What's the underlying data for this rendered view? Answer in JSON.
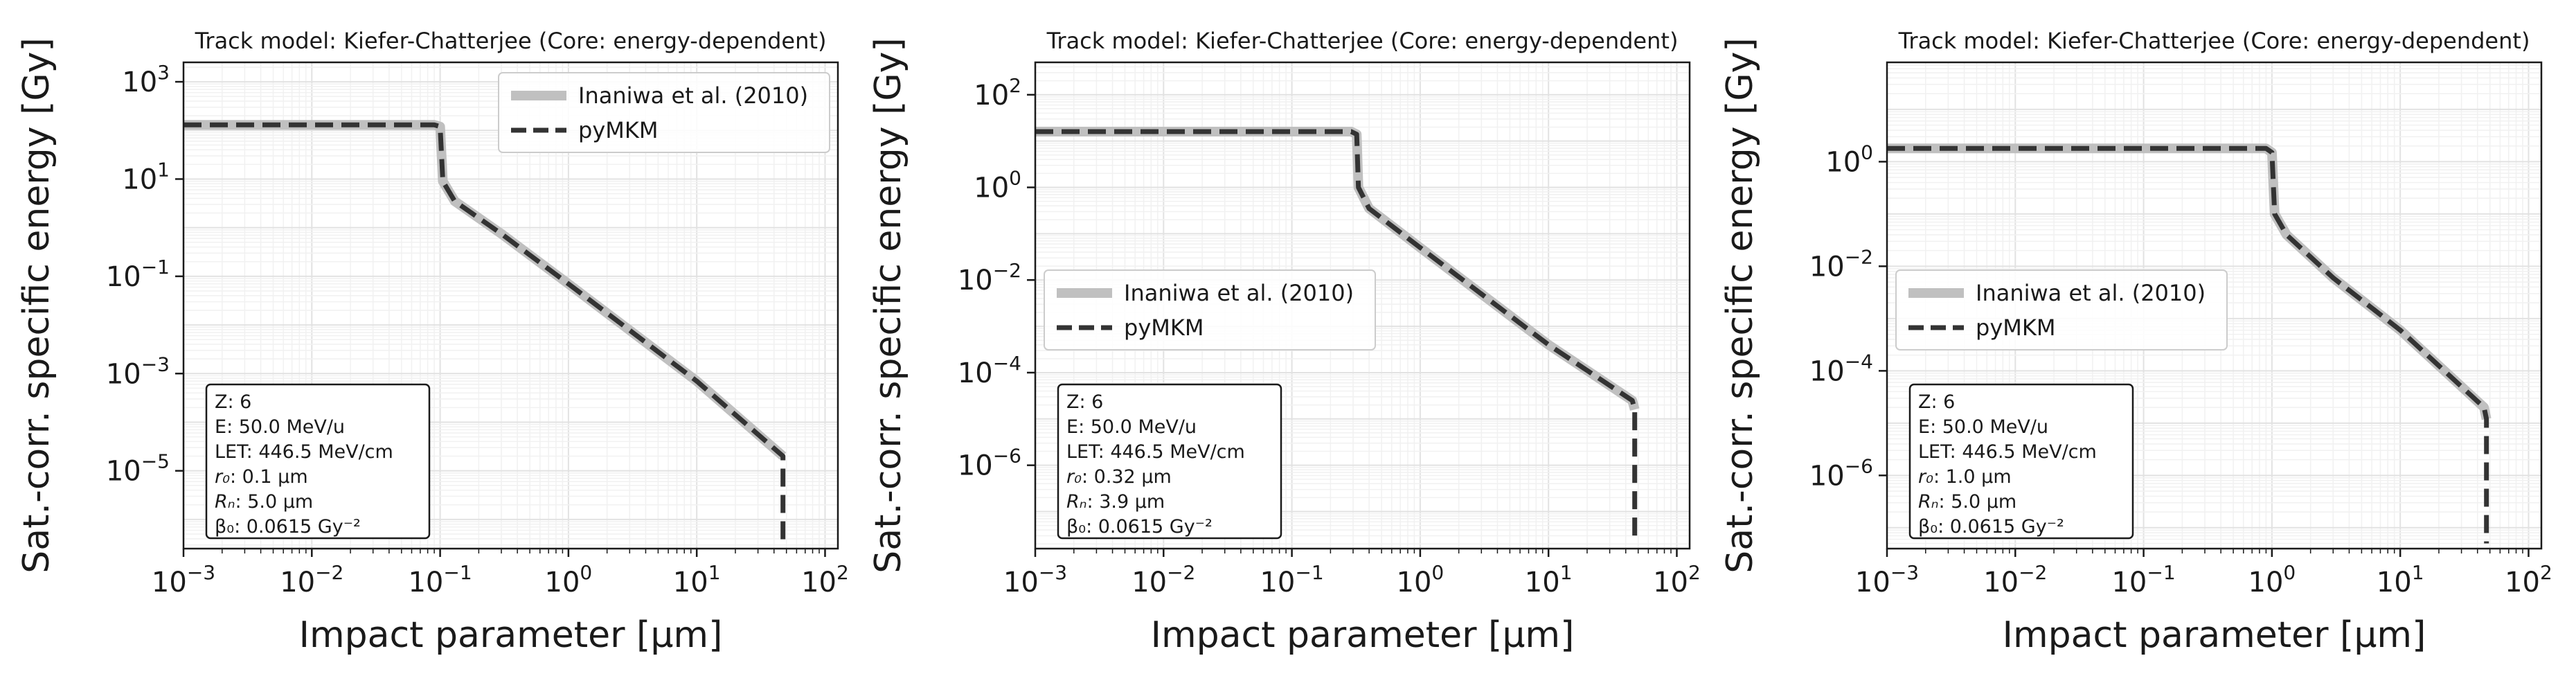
{
  "chart_data": [
    {
      "type": "line",
      "title": "Track model: Kiefer-Chatterjee (Core: energy-dependent)",
      "xlabel": "Impact parameter [μm]",
      "ylabel": "Sat.-corr. specific energy [Gy]",
      "xscale": "log",
      "yscale": "log",
      "xlim_exp": [
        -3,
        2.1
      ],
      "ylim_exp": [
        -6.6,
        3.4
      ],
      "xticks": [
        {
          "base": "10",
          "exp": "−3",
          "v": -3
        },
        {
          "base": "10",
          "exp": "−2",
          "v": -2
        },
        {
          "base": "10",
          "exp": "−1",
          "v": -1
        },
        {
          "base": "10",
          "exp": "0",
          "v": 0
        },
        {
          "base": "10",
          "exp": "1",
          "v": 1
        },
        {
          "base": "10",
          "exp": "2",
          "v": 2
        }
      ],
      "yticks": [
        {
          "base": "10",
          "exp": "3",
          "v": 3
        },
        {
          "base": "10",
          "exp": "1",
          "v": 1
        },
        {
          "base": "10",
          "exp": "−1",
          "v": -1
        },
        {
          "base": "10",
          "exp": "−3",
          "v": -3
        },
        {
          "base": "10",
          "exp": "−5",
          "v": -5
        }
      ],
      "legend": {
        "location": "upper right",
        "entries": [
          "Inaniwa et al. (2010)",
          "pyMKM"
        ]
      },
      "series": [
        {
          "name": "Inaniwa et al. (2010)",
          "color": "#c0c0c0",
          "style": "solid",
          "points": [
            [
              0.001,
              130
            ],
            [
              0.09,
              130
            ],
            [
              0.1,
              120
            ],
            [
              0.105,
              9.0
            ],
            [
              0.13,
              3.5
            ],
            [
              0.3,
              0.75
            ],
            [
              1,
              0.07
            ],
            [
              10,
              0.0007
            ],
            [
              47,
              2e-05
            ]
          ]
        },
        {
          "name": "pyMKM",
          "color": "#333333",
          "style": "dashed",
          "points": [
            [
              0.001,
              130
            ],
            [
              0.09,
              130
            ],
            [
              0.1,
              120
            ],
            [
              0.105,
              9.0
            ],
            [
              0.13,
              3.5
            ],
            [
              0.3,
              0.75
            ],
            [
              1,
              0.07
            ],
            [
              10,
              0.0007
            ],
            [
              47,
              2e-05
            ],
            [
              47,
              3e-07
            ]
          ]
        }
      ],
      "info_box": {
        "location": "lower left",
        "lines": [
          {
            "label": "Z",
            "italic": false,
            "value": ": 6"
          },
          {
            "label": "E",
            "italic": false,
            "value": ": 50.0 MeV/u"
          },
          {
            "label": "LET",
            "italic": false,
            "value": ": 446.5 MeV/cm"
          },
          {
            "label": "r₀",
            "italic": true,
            "value": ": 0.1 μm"
          },
          {
            "label": "Rₙ",
            "italic": true,
            "value": ": 5.0 μm"
          },
          {
            "label": "β₀",
            "italic": false,
            "value": ": 0.0615 Gy⁻²"
          }
        ]
      }
    },
    {
      "type": "line",
      "title": "Track model: Kiefer-Chatterjee (Core: energy-dependent)",
      "xlabel": "Impact parameter [μm]",
      "ylabel": "Sat.-corr. specific energy [Gy]",
      "xscale": "log",
      "yscale": "log",
      "xlim_exp": [
        -3,
        2.1
      ],
      "ylim_exp": [
        -7.8,
        2.7
      ],
      "xticks": [
        {
          "base": "10",
          "exp": "−3",
          "v": -3
        },
        {
          "base": "10",
          "exp": "−2",
          "v": -2
        },
        {
          "base": "10",
          "exp": "−1",
          "v": -1
        },
        {
          "base": "10",
          "exp": "0",
          "v": 0
        },
        {
          "base": "10",
          "exp": "1",
          "v": 1
        },
        {
          "base": "10",
          "exp": "2",
          "v": 2
        }
      ],
      "yticks": [
        {
          "base": "10",
          "exp": "2",
          "v": 2
        },
        {
          "base": "10",
          "exp": "0",
          "v": 0
        },
        {
          "base": "10",
          "exp": "−2",
          "v": -2
        },
        {
          "base": "10",
          "exp": "−4",
          "v": -4
        },
        {
          "base": "10",
          "exp": "−6",
          "v": -6
        }
      ],
      "legend": {
        "location": "center left",
        "entries": [
          "Inaniwa et al. (2010)",
          "pyMKM"
        ]
      },
      "series": [
        {
          "name": "Inaniwa et al. (2010)",
          "color": "#c0c0c0",
          "style": "solid",
          "points": [
            [
              0.001,
              16
            ],
            [
              0.29,
              16
            ],
            [
              0.32,
              14
            ],
            [
              0.33,
              1.0
            ],
            [
              0.4,
              0.35
            ],
            [
              1,
              0.05
            ],
            [
              10,
              0.0004
            ],
            [
              45,
              2.5e-05
            ],
            [
              47,
              1.6e-05
            ]
          ]
        },
        {
          "name": "pyMKM",
          "color": "#333333",
          "style": "dashed",
          "points": [
            [
              0.001,
              16
            ],
            [
              0.29,
              16
            ],
            [
              0.32,
              14
            ],
            [
              0.33,
              1.0
            ],
            [
              0.4,
              0.35
            ],
            [
              1,
              0.05
            ],
            [
              10,
              0.0004
            ],
            [
              45,
              2.5e-05
            ],
            [
              47,
              1.6e-05
            ],
            [
              47,
              3e-08
            ]
          ]
        }
      ],
      "info_box": {
        "location": "lower left",
        "lines": [
          {
            "label": "Z",
            "italic": false,
            "value": ": 6"
          },
          {
            "label": "E",
            "italic": false,
            "value": ": 50.0 MeV/u"
          },
          {
            "label": "LET",
            "italic": false,
            "value": ": 446.5 MeV/cm"
          },
          {
            "label": "r₀",
            "italic": true,
            "value": ": 0.32 μm"
          },
          {
            "label": "Rₙ",
            "italic": true,
            "value": ": 3.9 μm"
          },
          {
            "label": "β₀",
            "italic": false,
            "value": ": 0.0615 Gy⁻²"
          }
        ]
      }
    },
    {
      "type": "line",
      "title": "Track model: Kiefer-Chatterjee (Core: energy-dependent)",
      "xlabel": "Impact parameter [μm]",
      "ylabel": "Sat.-corr. specific energy [Gy]",
      "xscale": "log",
      "yscale": "log",
      "xlim_exp": [
        -3,
        2.1
      ],
      "ylim_exp": [
        -7.4,
        1.9
      ],
      "xticks": [
        {
          "base": "10",
          "exp": "−3",
          "v": -3
        },
        {
          "base": "10",
          "exp": "−2",
          "v": -2
        },
        {
          "base": "10",
          "exp": "−1",
          "v": -1
        },
        {
          "base": "10",
          "exp": "0",
          "v": 0
        },
        {
          "base": "10",
          "exp": "1",
          "v": 1
        },
        {
          "base": "10",
          "exp": "2",
          "v": 2
        }
      ],
      "yticks": [
        {
          "base": "10",
          "exp": "0",
          "v": 0
        },
        {
          "base": "10",
          "exp": "−2",
          "v": -2
        },
        {
          "base": "10",
          "exp": "−4",
          "v": -4
        },
        {
          "base": "10",
          "exp": "−6",
          "v": -6
        }
      ],
      "legend": {
        "location": "center left",
        "entries": [
          "Inaniwa et al. (2010)",
          "pyMKM"
        ]
      },
      "series": [
        {
          "name": "Inaniwa et al. (2010)",
          "color": "#c0c0c0",
          "style": "solid",
          "points": [
            [
              0.001,
              1.8
            ],
            [
              0.9,
              1.8
            ],
            [
              1.0,
              1.5
            ],
            [
              1.05,
              0.1
            ],
            [
              1.3,
              0.04
            ],
            [
              3,
              0.006
            ],
            [
              10,
              0.0006
            ],
            [
              45,
              2e-05
            ],
            [
              47,
              1.2e-05
            ]
          ]
        },
        {
          "name": "pyMKM",
          "color": "#333333",
          "style": "dashed",
          "points": [
            [
              0.001,
              1.8
            ],
            [
              0.9,
              1.8
            ],
            [
              1.0,
              1.5
            ],
            [
              1.05,
              0.1
            ],
            [
              1.3,
              0.04
            ],
            [
              3,
              0.006
            ],
            [
              10,
              0.0006
            ],
            [
              45,
              2e-05
            ],
            [
              47,
              1.2e-05
            ],
            [
              47,
              5e-08
            ]
          ]
        }
      ],
      "info_box": {
        "location": "lower left",
        "lines": [
          {
            "label": "Z",
            "italic": false,
            "value": ": 6"
          },
          {
            "label": "E",
            "italic": false,
            "value": ": 50.0 MeV/u"
          },
          {
            "label": "LET",
            "italic": false,
            "value": ": 446.5 MeV/cm"
          },
          {
            "label": "r₀",
            "italic": true,
            "value": ": 1.0 μm"
          },
          {
            "label": "Rₙ",
            "italic": true,
            "value": ": 5.0 μm"
          },
          {
            "label": "β₀",
            "italic": false,
            "value": ": 0.0615 Gy⁻²"
          }
        ]
      }
    }
  ]
}
